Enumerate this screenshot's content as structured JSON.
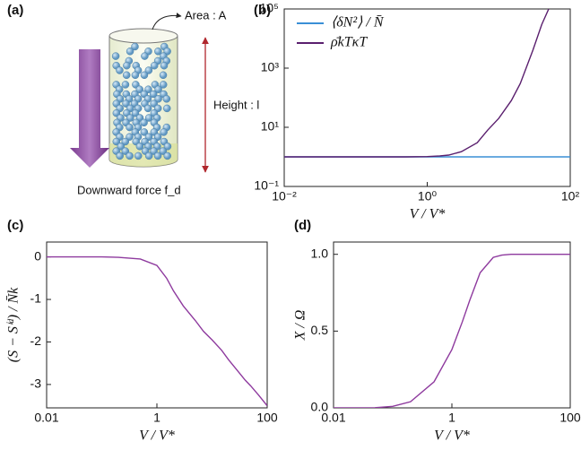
{
  "diagram": {
    "label": "(a)",
    "area_label": "Area : A",
    "height_label": "Height : l",
    "force_label": "Downward force f_d"
  },
  "chart_data": [
    {
      "type": "line",
      "label": "(b)",
      "x_label": "V / V*",
      "xlog": true,
      "ylog": true,
      "xlim": [
        0.01,
        100
      ],
      "ylim": [
        0.1,
        100000
      ],
      "xticks": [
        {
          "value": 0.01,
          "label": "10⁻²"
        },
        {
          "value": 1,
          "label": "10⁰"
        },
        {
          "value": 100,
          "label": "10²"
        }
      ],
      "yticks": [
        {
          "value": 0.1,
          "label": "10⁻¹"
        },
        {
          "value": 10,
          "label": "10¹"
        },
        {
          "value": 1000,
          "label": "10³"
        },
        {
          "value": 100000,
          "label": "10⁵"
        }
      ],
      "legend": "top-left",
      "x": [
        0.01,
        0.02,
        0.05,
        0.1,
        0.2,
        0.5,
        1,
        1.5,
        2,
        3,
        5,
        7,
        10,
        15,
        20,
        30,
        40,
        50,
        70,
        100
      ],
      "series": [
        {
          "name": "⟨δN²⟩ / N̄",
          "color": "#3a8fd6",
          "values": [
            1,
            1,
            1,
            1,
            1,
            1,
            1,
            1,
            1,
            1,
            1,
            1,
            1,
            1,
            1,
            1,
            1,
            1,
            1,
            1
          ]
        },
        {
          "name": "ρ̄kTκT",
          "color": "#5a1f6e",
          "values": [
            1,
            1,
            1,
            1,
            1,
            1,
            1.02,
            1.08,
            1.15,
            1.5,
            3,
            8,
            20,
            80,
            300,
            4000,
            30000,
            100000,
            null,
            null
          ]
        }
      ]
    },
    {
      "type": "line",
      "label": "(c)",
      "x_label": "V / V*",
      "y_label": "(S − Sⁱᵈ) / N̄k",
      "xlog": true,
      "ylog": false,
      "xlim": [
        0.01,
        100
      ],
      "ylim": [
        -3.55,
        0.35
      ],
      "xticks": [
        0.01,
        1,
        100
      ],
      "yticks": [
        0,
        -1,
        -2,
        -3
      ],
      "x": [
        0.01,
        0.02,
        0.05,
        0.1,
        0.2,
        0.5,
        1,
        1.5,
        2,
        3,
        5,
        7,
        10,
        15,
        20,
        30,
        40,
        50,
        70,
        100
      ],
      "series": [
        {
          "color": "#8e3a9e",
          "values": [
            0,
            0,
            0,
            0,
            -0.01,
            -0.05,
            -0.2,
            -0.5,
            -0.8,
            -1.15,
            -1.5,
            -1.75,
            -1.95,
            -2.2,
            -2.42,
            -2.7,
            -2.9,
            -3.03,
            -3.25,
            -3.5
          ]
        }
      ]
    },
    {
      "type": "line",
      "label": "(d)",
      "x_label": "V / V*",
      "y_label": "X / Ω",
      "xlog": true,
      "ylog": false,
      "xlim": [
        0.01,
        100
      ],
      "ylim": [
        0,
        1.08
      ],
      "xticks": [
        0.01,
        1,
        100
      ],
      "yticks": [
        {
          "value": 0,
          "label": "0.0"
        },
        {
          "value": 0.5,
          "label": "0.5"
        },
        {
          "value": 1,
          "label": "1.0"
        }
      ],
      "x": [
        0.01,
        0.02,
        0.05,
        0.1,
        0.2,
        0.5,
        1,
        1.5,
        2,
        3,
        5,
        7,
        10,
        15,
        20,
        30,
        40,
        50,
        70,
        100
      ],
      "series": [
        {
          "color": "#8e3a9e",
          "values": [
            0,
            0,
            0.001,
            0.01,
            0.04,
            0.17,
            0.38,
            0.56,
            0.7,
            0.88,
            0.98,
            0.995,
            1,
            1,
            1,
            1,
            1,
            1,
            1,
            1
          ]
        }
      ]
    }
  ]
}
